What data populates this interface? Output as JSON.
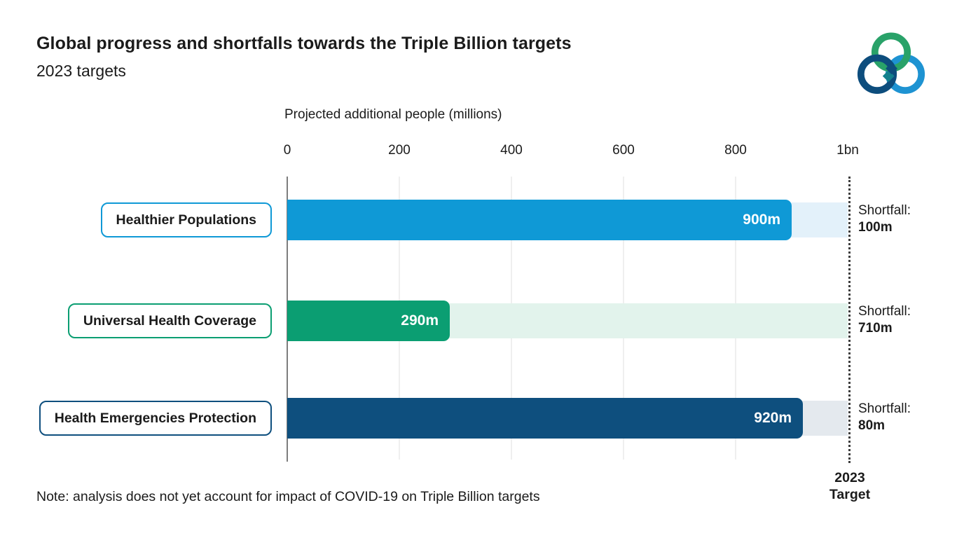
{
  "header": {
    "title": "Global progress and shortfalls towards the Triple Billion targets",
    "subtitle": "2023 targets"
  },
  "logo": {
    "name": "triple-billion-logo",
    "colors": {
      "green": "#29a269",
      "navy": "#0d4d7d",
      "blue": "#1e93d2",
      "teal": "#13808c"
    }
  },
  "chart_data": {
    "type": "bar",
    "orientation": "horizontal",
    "axis_title": "Projected additional people (millions)",
    "categories": [
      "Healthier Populations",
      "Universal Health Coverage",
      "Health Emergencies Protection"
    ],
    "values": [
      900,
      290,
      920
    ],
    "value_labels": [
      "900m",
      "290m",
      "920m"
    ],
    "shortfall_word": "Shortfall:",
    "shortfall_values": [
      100,
      710,
      80
    ],
    "shortfall_labels": [
      "100m",
      "710m",
      "80m"
    ],
    "xlim": [
      0,
      1000
    ],
    "x_tick_values": [
      0,
      200,
      400,
      600,
      800,
      1000
    ],
    "x_tick_labels": [
      "0",
      "200",
      "400",
      "600",
      "800",
      "1bn"
    ],
    "series_colors": [
      "#0f99d6",
      "#0b9e72",
      "#0e4f7e"
    ],
    "shortfall_colors": [
      "#e3f1fa",
      "#e2f3ec",
      "#e4e9ee"
    ],
    "grid": true,
    "legend": false,
    "target_line": {
      "value": 1000,
      "label": "2023 Target"
    }
  },
  "target_label": {
    "line1": "2023",
    "line2": "Target"
  },
  "note": "Note: analysis does not yet account for impact of COVID-19 on Triple Billion targets"
}
